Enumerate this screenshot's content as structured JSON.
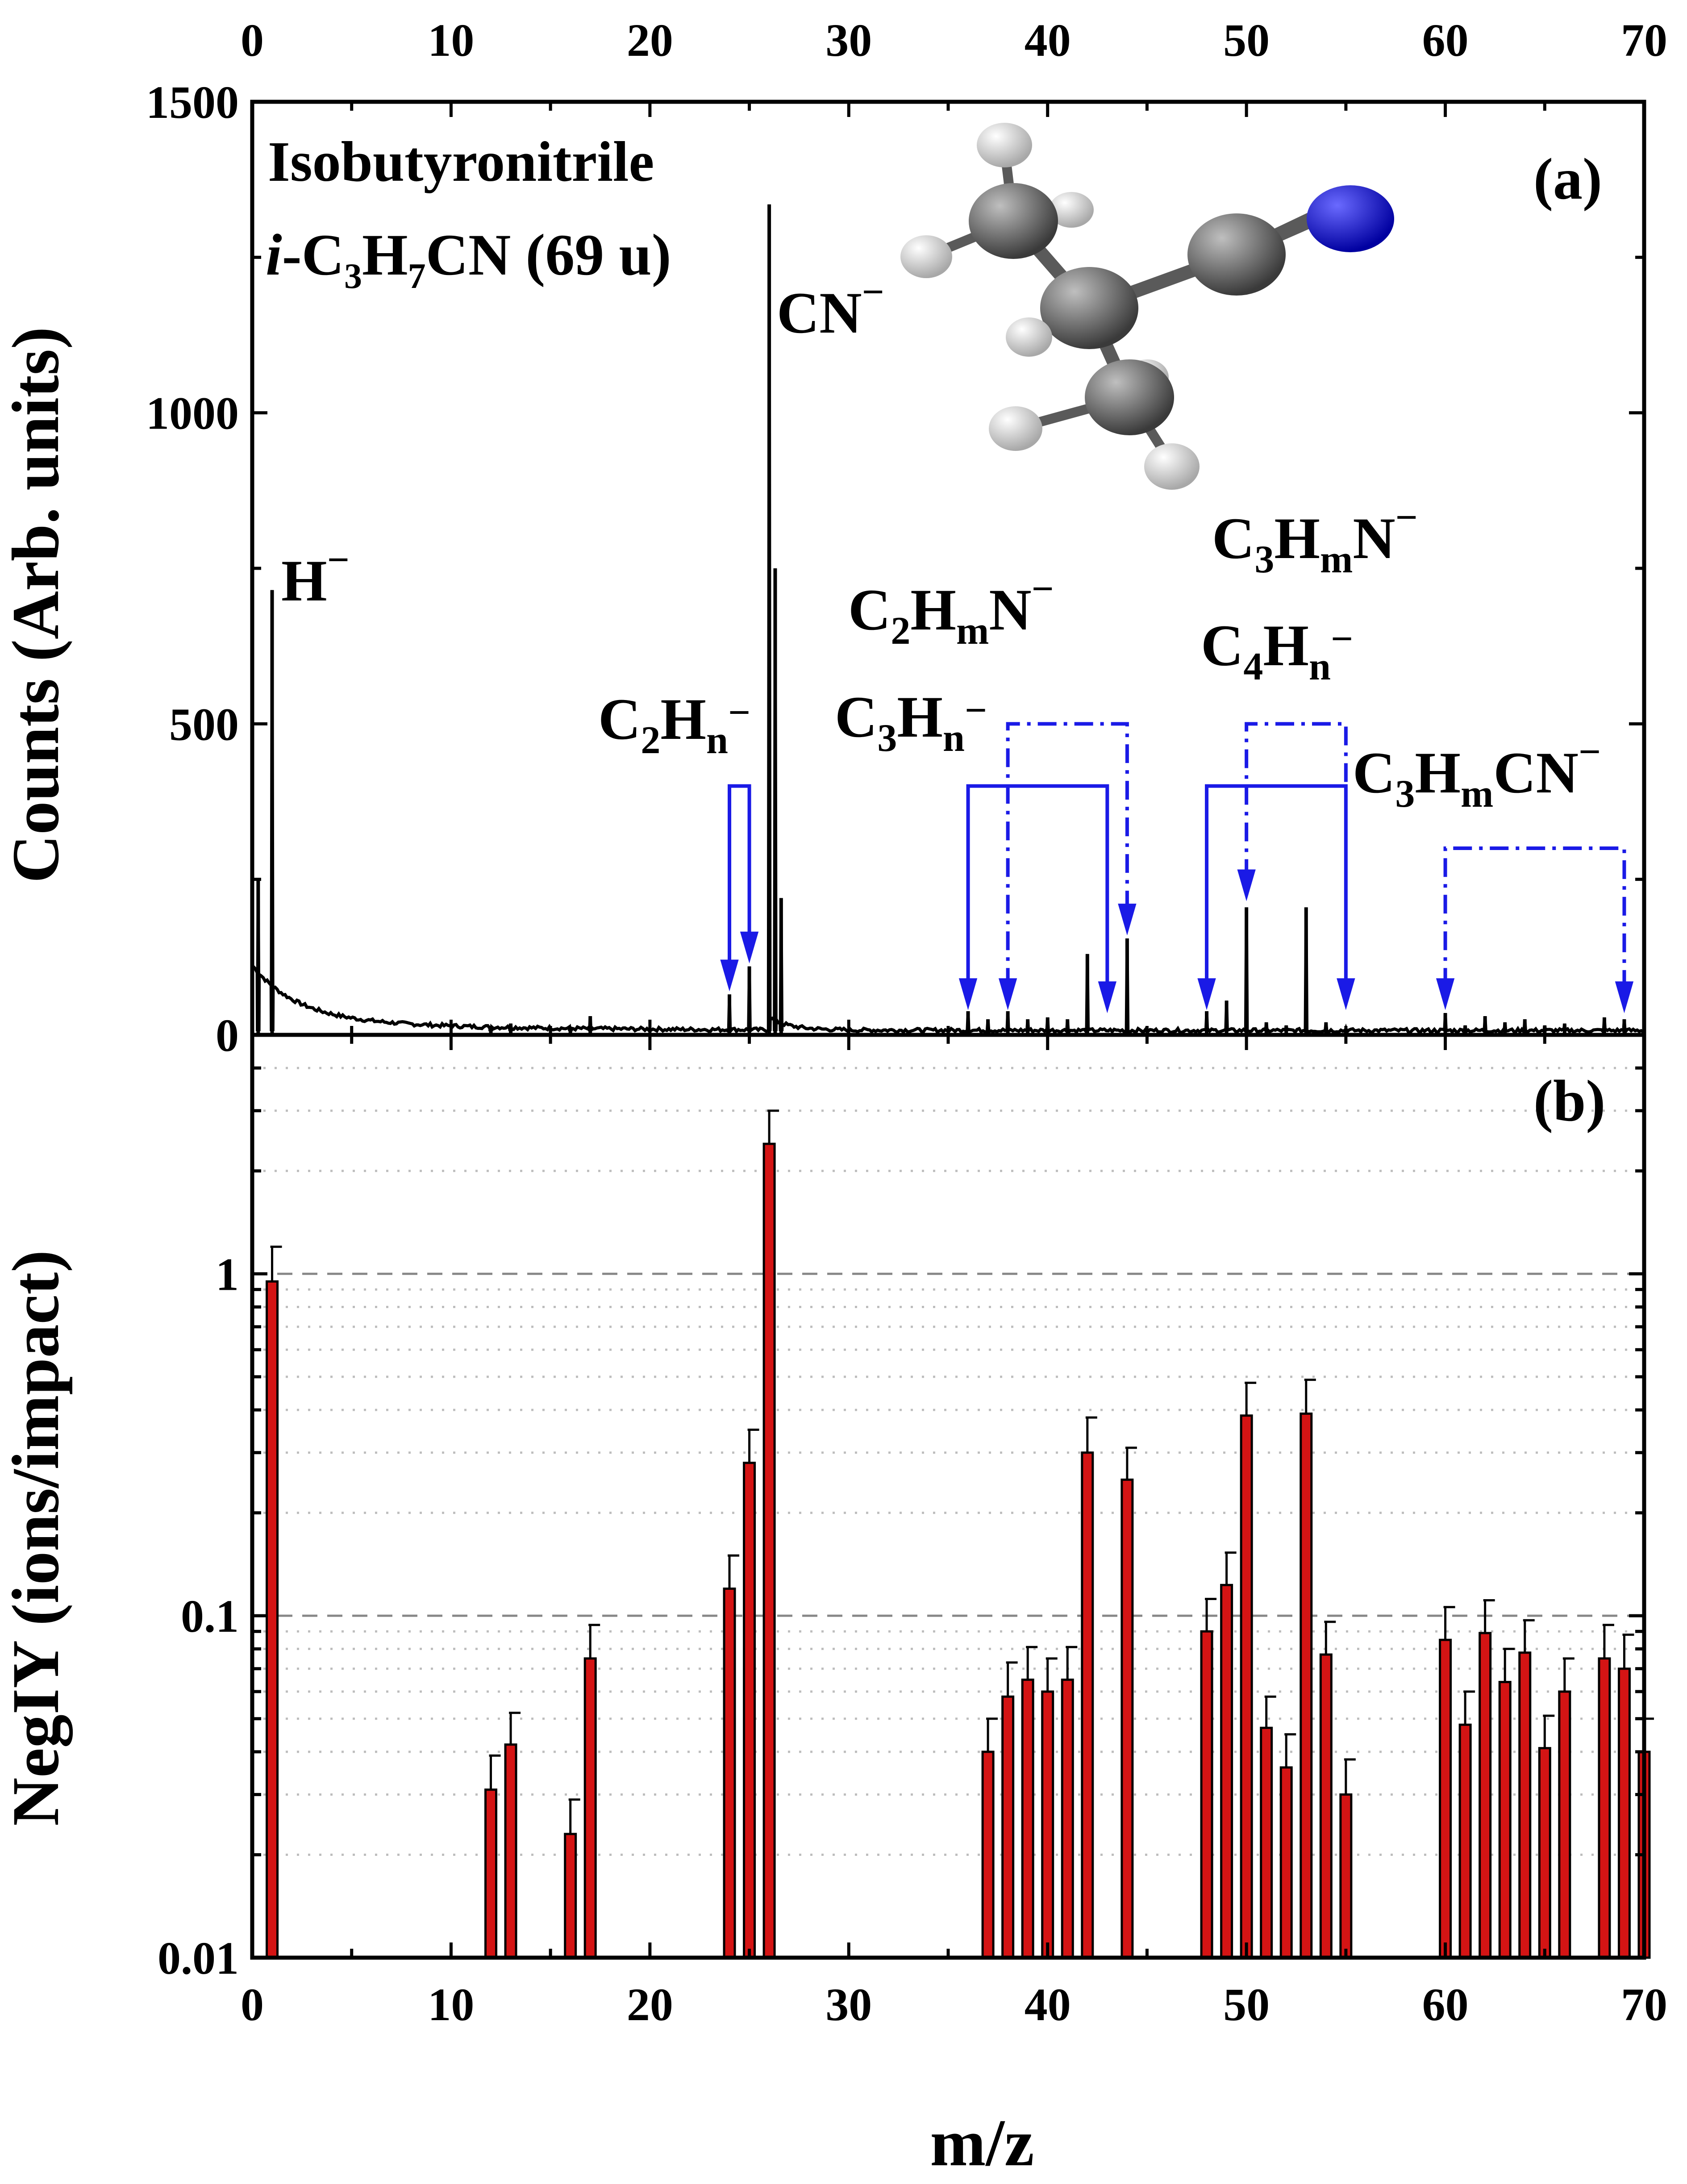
{
  "colors": {
    "spectrum_line": "#000000",
    "annotation": "#1a1ae6",
    "bar_fill": "#d41414",
    "bar_edge": "#000000",
    "molecule_carbon": "#555555",
    "molecule_hydrogen": "#e6e6e6",
    "molecule_nitrogen": "#1010ee"
  },
  "panel_a": {
    "tag": "(a)",
    "title": "Isobutyronitrile",
    "formula": {
      "italic_prefix": "i",
      "text": "-C3H7CN (69 u)",
      "parts": [
        {
          "t": "-C",
          "s": "normal"
        },
        {
          "t": "3",
          "s": "sub"
        },
        {
          "t": "H",
          "s": "normal"
        },
        {
          "t": "7",
          "s": "sub"
        },
        {
          "t": "CN (69 u)",
          "s": "normal"
        }
      ]
    },
    "ylabel": "Counts (Arb. units)",
    "labels": {
      "h": {
        "text": "H−",
        "parts": [
          {
            "t": "H",
            "s": "normal"
          },
          {
            "t": "−",
            "s": "sup"
          }
        ]
      },
      "cn": {
        "text": "CN−",
        "parts": [
          {
            "t": "CN",
            "s": "normal"
          },
          {
            "t": "−",
            "s": "sup"
          }
        ]
      },
      "c2hn": {
        "text": "C2Hn−",
        "parts": [
          {
            "t": "C",
            "s": "normal"
          },
          {
            "t": "2",
            "s": "sub"
          },
          {
            "t": "H",
            "s": "normal"
          },
          {
            "t": "n",
            "s": "sub"
          },
          {
            "t": "−",
            "s": "sup"
          }
        ]
      },
      "c2hmn": {
        "text": "C2HmN−",
        "parts": [
          {
            "t": "C",
            "s": "normal"
          },
          {
            "t": "2",
            "s": "sub"
          },
          {
            "t": "H",
            "s": "normal"
          },
          {
            "t": "m",
            "s": "sub"
          },
          {
            "t": "N",
            "s": "normal"
          },
          {
            "t": "−",
            "s": "sup"
          }
        ]
      },
      "c3hn": {
        "text": "C3Hn−",
        "parts": [
          {
            "t": "C",
            "s": "normal"
          },
          {
            "t": "3",
            "s": "sub"
          },
          {
            "t": "H",
            "s": "normal"
          },
          {
            "t": "n",
            "s": "sub"
          },
          {
            "t": "−",
            "s": "sup"
          }
        ]
      },
      "c3hmn": {
        "text": "C3HmN−",
        "parts": [
          {
            "t": "C",
            "s": "normal"
          },
          {
            "t": "3",
            "s": "sub"
          },
          {
            "t": "H",
            "s": "normal"
          },
          {
            "t": "m",
            "s": "sub"
          },
          {
            "t": "N",
            "s": "normal"
          },
          {
            "t": "−",
            "s": "sup"
          }
        ]
      },
      "c4hn": {
        "text": "C4Hn−",
        "parts": [
          {
            "t": "C",
            "s": "normal"
          },
          {
            "t": "4",
            "s": "sub"
          },
          {
            "t": "H",
            "s": "normal"
          },
          {
            "t": "n",
            "s": "sub"
          },
          {
            "t": "−",
            "s": "sup"
          }
        ]
      },
      "c3hmcn": {
        "text": "C3HmCN−",
        "parts": [
          {
            "t": "C",
            "s": "normal"
          },
          {
            "t": "3",
            "s": "sub"
          },
          {
            "t": "H",
            "s": "normal"
          },
          {
            "t": "m",
            "s": "sub"
          },
          {
            "t": "CN",
            "s": "normal"
          },
          {
            "t": "−",
            "s": "sup"
          }
        ]
      }
    }
  },
  "panel_b": {
    "tag": "(b)",
    "ylabel": "NegIY (ions/impact)"
  },
  "xlabel": "m/z",
  "chart_data": [
    {
      "type": "line",
      "panel": "a",
      "xlim": [
        0,
        70
      ],
      "ylim": [
        0,
        1500
      ],
      "x_ticks": [
        0,
        10,
        20,
        30,
        40,
        50,
        60,
        70
      ],
      "x_tick_labels_top": [
        "0",
        "10",
        "20",
        "30",
        "40",
        "50",
        "60",
        "70"
      ],
      "y_ticks": [
        0,
        500,
        1000,
        1500
      ],
      "y_tick_labels": [
        "0",
        "500",
        "1000",
        "1500"
      ],
      "grid": false,
      "peaks": [
        {
          "x": 0.3,
          "y": 250
        },
        {
          "x": 1,
          "y": 715
        },
        {
          "x": 12,
          "y": 10
        },
        {
          "x": 13,
          "y": 18
        },
        {
          "x": 16,
          "y": 10
        },
        {
          "x": 17,
          "y": 30
        },
        {
          "x": 24,
          "y": 65
        },
        {
          "x": 25,
          "y": 110
        },
        {
          "x": 26,
          "y": 1335
        },
        {
          "x": 26.3,
          "y": 750
        },
        {
          "x": 26.6,
          "y": 220
        },
        {
          "x": 36,
          "y": 38
        },
        {
          "x": 37,
          "y": 25
        },
        {
          "x": 38,
          "y": 38
        },
        {
          "x": 39,
          "y": 25
        },
        {
          "x": 40,
          "y": 28
        },
        {
          "x": 41,
          "y": 25
        },
        {
          "x": 42,
          "y": 130
        },
        {
          "x": 44,
          "y": 155
        },
        {
          "x": 48,
          "y": 38
        },
        {
          "x": 49,
          "y": 55
        },
        {
          "x": 50,
          "y": 205
        },
        {
          "x": 51,
          "y": 20
        },
        {
          "x": 52,
          "y": 15
        },
        {
          "x": 53,
          "y": 205
        },
        {
          "x": 54,
          "y": 20
        },
        {
          "x": 55,
          "y": 10
        },
        {
          "x": 60,
          "y": 35
        },
        {
          "x": 61,
          "y": 15
        },
        {
          "x": 62,
          "y": 30
        },
        {
          "x": 63,
          "y": 20
        },
        {
          "x": 64,
          "y": 25
        },
        {
          "x": 65,
          "y": 15
        },
        {
          "x": 66,
          "y": 18
        },
        {
          "x": 68,
          "y": 28
        },
        {
          "x": 69,
          "y": 25
        }
      ]
    },
    {
      "type": "bar",
      "panel": "b",
      "xlim": [
        0,
        70
      ],
      "ylim": [
        0.01,
        5
      ],
      "y_scale": "log",
      "x_ticks": [
        0,
        10,
        20,
        30,
        40,
        50,
        60,
        70
      ],
      "x_tick_labels": [
        "0",
        "10",
        "20",
        "30",
        "40",
        "50",
        "60",
        "70"
      ],
      "y_ticks": [
        0.01,
        0.1,
        1
      ],
      "y_tick_labels": [
        "0.01",
        "0.1",
        "1"
      ],
      "grid": "dotted minor horizontal lines, dashed at 0.1 and 1",
      "series": [
        {
          "x": [
            1,
            12,
            13,
            16,
            17,
            24,
            25,
            26,
            37,
            38,
            39,
            40,
            41,
            42,
            44,
            48,
            49,
            50,
            51,
            52,
            53,
            54,
            55,
            60,
            61,
            62,
            63,
            64,
            65,
            66,
            68,
            69,
            70
          ],
          "values": [
            0.95,
            0.031,
            0.042,
            0.023,
            0.075,
            0.12,
            0.28,
            2.4,
            0.04,
            0.058,
            0.065,
            0.06,
            0.065,
            0.3,
            0.25,
            0.09,
            0.123,
            0.385,
            0.047,
            0.036,
            0.39,
            0.077,
            0.03,
            0.085,
            0.048,
            0.089,
            0.064,
            0.078,
            0.041,
            0.06,
            0.075,
            0.07,
            0.04
          ],
          "errors": [
            1.2,
            0.039,
            0.052,
            0.029,
            0.094,
            0.15,
            0.35,
            3.0,
            0.05,
            0.073,
            0.081,
            0.075,
            0.081,
            0.38,
            0.31,
            0.112,
            0.153,
            0.48,
            0.058,
            0.045,
            0.49,
            0.096,
            0.038,
            0.106,
            0.06,
            0.111,
            0.08,
            0.097,
            0.051,
            0.075,
            0.094,
            0.088,
            0.05
          ]
        }
      ]
    }
  ]
}
